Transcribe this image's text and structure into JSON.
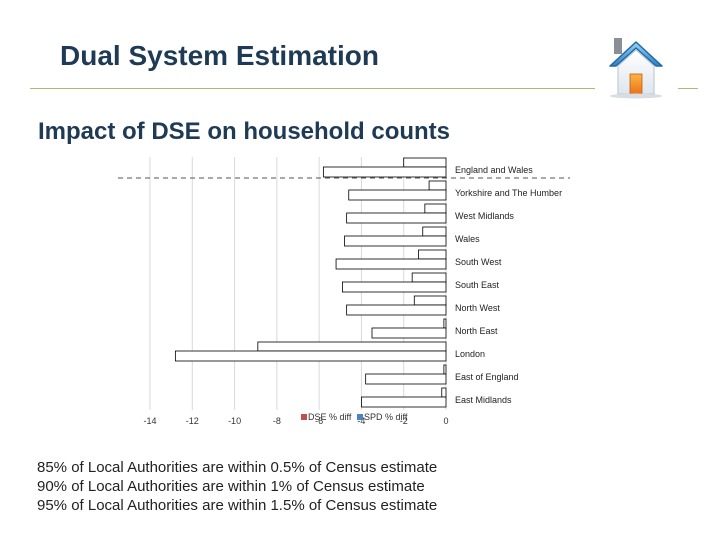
{
  "slide": {
    "title": "Dual System Estimation",
    "subtitle": "Impact of DSE on household counts"
  },
  "icons": {
    "home": "home-icon"
  },
  "colors": {
    "title": "#1f3a55",
    "rule": "#a8bf6a",
    "dse_series": "#c0504d",
    "spd_series": "#4f81bd"
  },
  "chart_data": {
    "type": "bar",
    "orientation": "horizontal",
    "title": "",
    "xlabel": "",
    "ylabel": "",
    "xlim": [
      -14,
      0
    ],
    "xticks": [
      -14,
      -12,
      -10,
      -8,
      -6,
      -4,
      -2,
      0
    ],
    "grid": true,
    "legend_position": "bottom",
    "categories": [
      "England and Wales",
      "Yorkshire and The Humber",
      "West Midlands",
      "Wales",
      "South West",
      "South East",
      "North West",
      "North East",
      "London",
      "East of England",
      "East Midlands"
    ],
    "series": [
      {
        "name": "DSE % diff",
        "values": [
          -2.0,
          -0.8,
          -1.0,
          -1.1,
          -1.3,
          -1.6,
          -1.5,
          -0.1,
          -8.9,
          -0.1,
          -0.2
        ]
      },
      {
        "name": "SPD % diff",
        "values": [
          -5.8,
          -4.6,
          -4.7,
          -4.8,
          -5.2,
          -4.9,
          -4.7,
          -3.5,
          -12.8,
          -3.8,
          -4.0
        ]
      }
    ]
  },
  "notes": [
    "85% of Local Authorities are within 0.5% of Census estimate",
    "90% of Local Authorities are within 1% of Census estimate",
    "95% of Local Authorities are within 1.5% of Census estimate"
  ]
}
